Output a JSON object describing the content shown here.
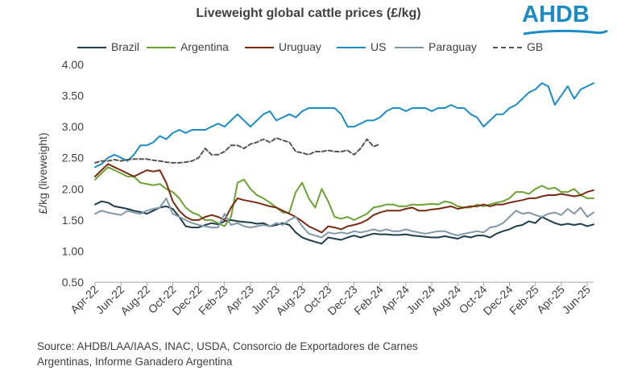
{
  "logo": {
    "text": "AHDB"
  },
  "chart_data": {
    "type": "line",
    "title": "Liveweight global cattle prices (£/kg)",
    "ylabel": "£/kg (liveweight)",
    "xlabel": "",
    "ylim": [
      0.5,
      4.0
    ],
    "yticks": [
      "0.50",
      "1.00",
      "1.50",
      "2.00",
      "2.50",
      "3.00",
      "3.50",
      "4.00"
    ],
    "ytick_values": [
      0.5,
      1.0,
      1.5,
      2.0,
      2.5,
      3.0,
      3.5,
      4.0
    ],
    "xlim": [
      0,
      38.5
    ],
    "categories": [
      "Apr-22",
      "Jun-22",
      "Aug-22",
      "Oct-22",
      "Dec-22",
      "Feb-23",
      "Apr-23",
      "Jun-23",
      "Aug-23",
      "Oct-23",
      "Dec-23",
      "Feb-24",
      "Apr-24",
      "Jun-24",
      "Aug-24",
      "Oct-24",
      "Dec-24",
      "Feb-25",
      "Apr-25",
      "Jun-25"
    ],
    "category_positions": [
      0,
      2,
      4,
      6,
      8,
      10,
      12,
      14,
      16,
      18,
      20,
      22,
      24,
      26,
      28,
      30,
      32,
      34,
      36,
      38
    ],
    "legend_position": "top",
    "series": [
      {
        "name": "Brazil",
        "color": "#1f3d4d",
        "dash": false,
        "x": [
          0,
          0.5,
          1,
          1.5,
          2,
          2.5,
          3,
          3.5,
          4,
          4.5,
          5,
          5.5,
          6,
          6.5,
          7,
          7.5,
          8,
          8.5,
          9,
          9.5,
          10,
          10.5,
          11,
          11.5,
          12,
          12.5,
          13,
          13.5,
          14,
          14.5,
          15,
          15.5,
          16,
          16.5,
          17,
          17.5,
          18,
          18.5,
          19,
          19.5,
          20,
          20.5,
          21,
          21.5,
          22,
          22.5,
          23,
          23.5,
          24,
          24.5,
          25,
          25.5,
          26,
          26.5,
          27,
          27.5,
          28,
          28.5,
          29,
          29.5,
          30,
          30.5,
          31,
          31.5,
          32,
          32.5,
          33,
          33.5,
          34,
          34.5,
          35,
          35.5,
          36,
          36.5,
          37,
          37.5,
          38,
          38.5
        ],
        "values": [
          1.75,
          1.8,
          1.78,
          1.72,
          1.7,
          1.68,
          1.65,
          1.63,
          1.6,
          1.65,
          1.7,
          1.72,
          1.68,
          1.55,
          1.4,
          1.38,
          1.38,
          1.42,
          1.45,
          1.43,
          1.48,
          1.5,
          1.48,
          1.47,
          1.46,
          1.44,
          1.45,
          1.4,
          1.42,
          1.45,
          1.42,
          1.3,
          1.22,
          1.18,
          1.15,
          1.12,
          1.22,
          1.2,
          1.18,
          1.22,
          1.25,
          1.22,
          1.25,
          1.28,
          1.27,
          1.27,
          1.26,
          1.26,
          1.27,
          1.25,
          1.24,
          1.23,
          1.22,
          1.22,
          1.24,
          1.22,
          1.2,
          1.24,
          1.22,
          1.25,
          1.25,
          1.22,
          1.28,
          1.32,
          1.35,
          1.4,
          1.42,
          1.48,
          1.45,
          1.55,
          1.5,
          1.45,
          1.42,
          1.44,
          1.42,
          1.44,
          1.4,
          1.43
        ]
      },
      {
        "name": "Argentina",
        "color": "#6aa332",
        "dash": false,
        "x": [
          0,
          0.5,
          1,
          1.5,
          2,
          2.5,
          3,
          3.5,
          4,
          4.5,
          5,
          5.5,
          6,
          6.5,
          7,
          7.5,
          8,
          8.5,
          9,
          9.5,
          10,
          10.5,
          11,
          11.5,
          12,
          12.5,
          13,
          13.5,
          14,
          14.5,
          15,
          15.5,
          16,
          16.5,
          17,
          17.5,
          18,
          18.5,
          19,
          19.5,
          20,
          20.5,
          21,
          21.5,
          22,
          22.5,
          23,
          23.5,
          24,
          24.5,
          25,
          25.5,
          26,
          26.5,
          27,
          27.5,
          28,
          28.5,
          29,
          29.5,
          30,
          30.5,
          31,
          31.5,
          32,
          32.5,
          33,
          33.5,
          34,
          34.5,
          35,
          35.5,
          36,
          36.5,
          37,
          37.5,
          38,
          38.5
        ],
        "values": [
          2.15,
          2.25,
          2.35,
          2.3,
          2.25,
          2.2,
          2.2,
          2.1,
          2.08,
          2.06,
          2.08,
          2.0,
          1.95,
          1.85,
          1.7,
          1.62,
          1.58,
          1.5,
          1.5,
          1.45,
          1.4,
          1.55,
          2.1,
          2.15,
          2.0,
          1.9,
          1.85,
          1.78,
          1.7,
          1.62,
          1.62,
          1.95,
          2.1,
          1.85,
          1.7,
          2.0,
          1.8,
          1.55,
          1.52,
          1.55,
          1.5,
          1.55,
          1.6,
          1.7,
          1.72,
          1.75,
          1.75,
          1.72,
          1.72,
          1.75,
          1.74,
          1.75,
          1.76,
          1.75,
          1.8,
          1.78,
          1.72,
          1.7,
          1.7,
          1.75,
          1.72,
          1.75,
          1.78,
          1.8,
          1.85,
          1.95,
          1.95,
          1.92,
          2.0,
          2.05,
          2.0,
          2.02,
          1.95,
          1.95,
          2.0,
          1.9,
          1.85,
          1.85
        ]
      },
      {
        "name": "Uruguay",
        "color": "#7a2a10",
        "dash": false,
        "x": [
          0,
          0.5,
          1,
          1.5,
          2,
          2.5,
          3,
          3.5,
          4,
          4.5,
          5,
          5.5,
          6,
          6.5,
          7,
          7.5,
          8,
          8.5,
          9,
          9.5,
          10,
          10.5,
          11,
          11.5,
          12,
          12.5,
          13,
          13.5,
          14,
          14.5,
          15,
          15.5,
          16,
          16.5,
          17,
          17.5,
          18,
          18.5,
          19,
          19.5,
          20,
          20.5,
          21,
          21.5,
          22,
          22.5,
          23,
          23.5,
          24,
          24.5,
          25,
          25.5,
          26,
          26.5,
          27,
          27.5,
          28,
          28.5,
          29,
          29.5,
          30,
          30.5,
          31,
          31.5,
          32,
          32.5,
          33,
          33.5,
          34,
          34.5,
          35,
          35.5,
          36,
          36.5,
          37,
          37.5,
          38,
          38.5
        ],
        "values": [
          2.2,
          2.3,
          2.4,
          2.35,
          2.3,
          2.25,
          2.2,
          2.25,
          2.3,
          2.28,
          2.3,
          2.1,
          1.8,
          1.65,
          1.55,
          1.5,
          1.5,
          1.55,
          1.58,
          1.55,
          1.5,
          1.7,
          1.85,
          1.82,
          1.8,
          1.78,
          1.75,
          1.72,
          1.7,
          1.65,
          1.6,
          1.55,
          1.48,
          1.4,
          1.35,
          1.3,
          1.4,
          1.38,
          1.35,
          1.4,
          1.42,
          1.45,
          1.5,
          1.58,
          1.62,
          1.65,
          1.65,
          1.65,
          1.68,
          1.7,
          1.65,
          1.65,
          1.67,
          1.68,
          1.7,
          1.72,
          1.68,
          1.7,
          1.72,
          1.72,
          1.75,
          1.72,
          1.75,
          1.75,
          1.78,
          1.8,
          1.82,
          1.85,
          1.85,
          1.88,
          1.9,
          1.9,
          1.92,
          1.9,
          1.88,
          1.9,
          1.95,
          1.98
        ]
      },
      {
        "name": "US",
        "color": "#1a8cc8",
        "dash": false,
        "x": [
          0,
          0.5,
          1,
          1.5,
          2,
          2.5,
          3,
          3.5,
          4,
          4.5,
          5,
          5.5,
          6,
          6.5,
          7,
          7.5,
          8,
          8.5,
          9,
          9.5,
          10,
          10.5,
          11,
          11.5,
          12,
          12.5,
          13,
          13.5,
          14,
          14.5,
          15,
          15.5,
          16,
          16.5,
          17,
          17.5,
          18,
          18.5,
          19,
          19.5,
          20,
          20.5,
          21,
          21.5,
          22,
          22.5,
          23,
          23.5,
          24,
          24.5,
          25,
          25.5,
          26,
          26.5,
          27,
          27.5,
          28,
          28.5,
          29,
          29.5,
          30,
          30.5,
          31,
          31.5,
          32,
          32.5,
          33,
          33.5,
          34,
          34.5,
          35,
          35.5,
          36,
          36.5,
          37,
          37.5,
          38,
          38.5
        ],
        "values": [
          2.35,
          2.4,
          2.5,
          2.55,
          2.5,
          2.45,
          2.55,
          2.7,
          2.7,
          2.75,
          2.85,
          2.8,
          2.9,
          2.95,
          2.9,
          2.95,
          2.95,
          2.95,
          3.0,
          3.05,
          3.0,
          3.1,
          3.2,
          3.1,
          3.0,
          3.1,
          3.2,
          3.25,
          3.1,
          3.15,
          3.2,
          3.15,
          3.25,
          3.3,
          3.3,
          3.3,
          3.3,
          3.3,
          3.2,
          3.0,
          3.0,
          3.05,
          3.1,
          3.1,
          3.15,
          3.25,
          3.3,
          3.3,
          3.25,
          3.3,
          3.3,
          3.3,
          3.25,
          3.3,
          3.3,
          3.35,
          3.3,
          3.3,
          3.2,
          3.15,
          3.0,
          3.1,
          3.2,
          3.2,
          3.3,
          3.35,
          3.45,
          3.55,
          3.6,
          3.7,
          3.65,
          3.35,
          3.5,
          3.65,
          3.45,
          3.6,
          3.65,
          3.7
        ]
      },
      {
        "name": "Paraguay",
        "color": "#7f99a6",
        "dash": false,
        "x": [
          0,
          0.5,
          1,
          1.5,
          2,
          2.5,
          3,
          3.5,
          4,
          4.5,
          5,
          5.5,
          6,
          6.5,
          7,
          7.5,
          8,
          8.5,
          9,
          9.5,
          10,
          10.5,
          11,
          11.5,
          12,
          12.5,
          13,
          13.5,
          14,
          14.5,
          15,
          15.5,
          16,
          16.5,
          17,
          17.5,
          18,
          18.5,
          19,
          19.5,
          20,
          20.5,
          21,
          21.5,
          22,
          22.5,
          23,
          23.5,
          24,
          24.5,
          25,
          25.5,
          26,
          26.5,
          27,
          27.5,
          28,
          28.5,
          29,
          29.5,
          30,
          30.5,
          31,
          31.5,
          32,
          32.5,
          33,
          33.5,
          34,
          34.5,
          35,
          35.5,
          36,
          36.5,
          37,
          37.5,
          38,
          38.5
        ],
        "values": [
          1.6,
          1.65,
          1.62,
          1.6,
          1.58,
          1.65,
          1.62,
          1.6,
          1.65,
          1.68,
          1.7,
          1.85,
          1.6,
          1.55,
          1.5,
          1.45,
          1.42,
          1.4,
          1.38,
          1.38,
          1.6,
          1.42,
          1.45,
          1.4,
          1.38,
          1.4,
          1.42,
          1.4,
          1.45,
          1.42,
          1.5,
          1.55,
          1.4,
          1.28,
          1.25,
          1.22,
          1.3,
          1.28,
          1.3,
          1.28,
          1.32,
          1.3,
          1.32,
          1.35,
          1.32,
          1.35,
          1.32,
          1.32,
          1.35,
          1.32,
          1.3,
          1.28,
          1.3,
          1.32,
          1.32,
          1.28,
          1.25,
          1.28,
          1.3,
          1.32,
          1.3,
          1.38,
          1.4,
          1.45,
          1.55,
          1.65,
          1.6,
          1.62,
          1.58,
          1.55,
          1.6,
          1.62,
          1.58,
          1.68,
          1.6,
          1.7,
          1.55,
          1.62
        ]
      },
      {
        "name": "GB",
        "color": "#555555",
        "dash": true,
        "x": [
          0,
          0.5,
          1,
          1.5,
          2,
          2.5,
          3,
          3.5,
          4,
          4.5,
          5,
          5.5,
          6,
          6.5,
          7,
          7.5,
          8,
          8.5,
          9,
          9.5,
          10,
          10.5,
          11,
          11.5,
          12,
          12.5,
          13,
          13.5,
          14,
          14.5,
          15,
          15.5,
          16,
          16.5,
          17,
          17.5,
          18,
          18.5,
          19,
          19.5,
          20,
          20.5,
          21,
          21.5,
          22
        ],
        "values": [
          2.42,
          2.45,
          2.45,
          2.47,
          2.45,
          2.47,
          2.48,
          2.48,
          2.48,
          2.46,
          2.45,
          2.43,
          2.42,
          2.42,
          2.43,
          2.45,
          2.5,
          2.65,
          2.55,
          2.55,
          2.6,
          2.7,
          2.7,
          2.65,
          2.72,
          2.75,
          2.8,
          2.75,
          2.82,
          2.78,
          2.75,
          2.6,
          2.58,
          2.55,
          2.6,
          2.6,
          2.62,
          2.6,
          2.6,
          2.62,
          2.55,
          2.65,
          2.8,
          2.68,
          2.72
        ]
      }
    ]
  },
  "source": {
    "line1": "Source: AHDB/LAA/IAAS, INAC, USDA, Consorcio de Exportadores de Carnes",
    "line2": "Argentinas, Informe Ganadero Argentina"
  }
}
